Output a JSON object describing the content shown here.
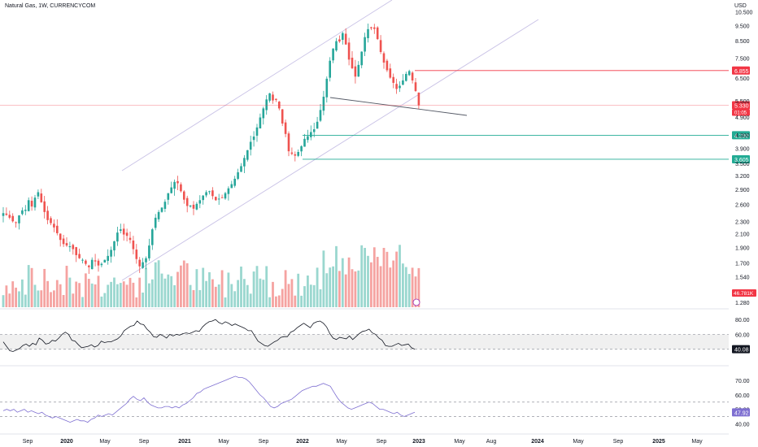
{
  "header": {
    "title": "Natural Gas, 1W, CURRENCYCOM",
    "currency": "USD"
  },
  "colors": {
    "up": "#26a69a",
    "down": "#ef5350",
    "volUp": "#9ad7cf",
    "volDown": "#f5a3a1",
    "channel": "#c9c2e6",
    "level_red": "#f23645",
    "level_green": "#22ab94",
    "rsi_line": "#131722",
    "stoch_line": "#7e6fd1",
    "grid_dash": "#9598a1"
  },
  "chart_data": [
    {
      "type": "candlestick",
      "title": "Natural Gas, 1W, CURRENCYCOM",
      "y_scale": "log",
      "ylim": [
        1.22,
        10.9
      ],
      "x_axis_labels": [
        "Sep",
        "2020",
        "May",
        "Sep",
        "2021",
        "May",
        "Sep",
        "2022",
        "May",
        "Sep",
        "2023",
        "May",
        "Aug",
        "2024",
        "May",
        "Sep",
        "2025",
        "May"
      ],
      "y_axis_labels": [
        "10.500",
        "9.500",
        "8.500",
        "7.500",
        "6.500",
        "5.500",
        "4.900",
        "4.300",
        "3.900",
        "3.500",
        "3.200",
        "2.900",
        "2.600",
        "2.300",
        "2.100",
        "1.900",
        "1.700",
        "1.540",
        "1.280"
      ],
      "close_path": [
        2.44,
        2.41,
        2.36,
        2.3,
        2.28,
        2.4,
        2.49,
        2.5,
        2.68,
        2.56,
        2.73,
        2.84,
        2.64,
        2.46,
        2.32,
        2.27,
        2.2,
        2.11,
        2.01,
        1.95,
        1.93,
        1.92,
        1.88,
        1.8,
        1.76,
        1.74,
        1.69,
        1.65,
        1.74,
        1.72,
        1.67,
        1.69,
        1.74,
        1.79,
        1.87,
        1.99,
        2.12,
        2.17,
        2.09,
        2.07,
        2.01,
        1.88,
        1.75,
        1.66,
        1.71,
        1.76,
        1.93,
        2.17,
        2.36,
        2.46,
        2.54,
        2.65,
        2.82,
        2.94,
        3.06,
        3.03,
        2.86,
        2.69,
        2.57,
        2.58,
        2.52,
        2.61,
        2.68,
        2.77,
        2.84,
        2.86,
        2.76,
        2.68,
        2.71,
        2.73,
        2.82,
        2.92,
        3.01,
        3.13,
        3.28,
        3.43,
        3.64,
        3.85,
        4.09,
        4.25,
        4.54,
        4.88,
        5.21,
        5.56,
        5.81,
        5.52,
        5.54,
        5.21,
        4.67,
        4.33,
        3.82,
        3.75,
        3.7,
        3.8,
        3.96,
        4.18,
        4.26,
        4.39,
        4.48,
        4.73,
        5.15,
        5.67,
        6.46,
        7.36,
        8.04,
        8.48,
        8.46,
        8.99,
        8.28,
        7.42,
        6.97,
        6.56,
        7.14,
        7.86,
        8.73,
        9.25,
        9.31,
        9.27,
        8.61,
        7.84,
        7.26,
        6.87,
        6.51,
        6.27,
        6.0,
        6.14,
        6.38,
        6.69,
        6.83,
        6.38,
        5.91,
        5.33
      ],
      "volume_note": "46.781K",
      "levels": [
        {
          "label": "6.855",
          "value": 6.855,
          "color": "red"
        },
        {
          "label": "5.330",
          "value": 5.33,
          "color": "red",
          "sub": "01:05"
        },
        {
          "label": "4.290",
          "value": 4.29,
          "color": "green"
        },
        {
          "label": "3.605",
          "value": 3.605,
          "color": "green"
        }
      ]
    },
    {
      "type": "line",
      "name": "RSI",
      "ylim": [
        20,
        90
      ],
      "y_axis_labels": [
        "80.00",
        "60.00"
      ],
      "bands": [
        60,
        40
      ],
      "last_value": "40.08",
      "values": [
        50,
        44,
        38,
        37,
        39,
        41,
        45,
        47,
        44,
        48,
        46,
        55,
        52,
        47,
        48,
        52,
        51,
        55,
        60,
        63,
        60,
        52,
        51,
        46,
        42,
        43,
        44,
        46,
        43,
        45,
        51,
        49,
        50,
        50,
        52,
        54,
        58,
        65,
        68,
        71,
        72,
        78,
        74,
        73,
        67,
        63,
        57,
        56,
        60,
        58,
        55,
        60,
        58,
        60,
        59,
        61,
        62,
        61,
        63,
        65,
        64,
        70,
        74,
        77,
        78,
        80,
        76,
        74,
        77,
        75,
        72,
        74,
        72,
        70,
        68,
        65,
        65,
        58,
        51,
        48,
        45,
        44,
        47,
        50,
        52,
        56,
        57,
        57,
        63,
        65,
        69,
        72,
        75,
        72,
        69,
        75,
        77,
        78,
        75,
        70,
        61,
        55,
        53,
        56,
        55,
        54,
        58,
        53,
        57,
        61,
        64,
        65,
        67,
        62,
        60,
        55,
        52,
        45,
        44,
        44,
        46,
        48,
        45,
        46,
        47,
        42,
        40
      ]
    },
    {
      "type": "line",
      "name": "Stochastic RSI",
      "ylim": [
        34,
        78
      ],
      "y_axis_labels": [
        "70.00",
        "60.00",
        "50.00",
        "40.00"
      ],
      "bands": [
        55,
        45
      ],
      "last_value": "47.92",
      "values": [
        49,
        50,
        49,
        50,
        48,
        49,
        50,
        48,
        49,
        48,
        47,
        48,
        46,
        45,
        44,
        45,
        44,
        43,
        42,
        41,
        42,
        43,
        42,
        42,
        41,
        43,
        44,
        46,
        45,
        46,
        47,
        46,
        48,
        50,
        52,
        54,
        57,
        59,
        57,
        56,
        58,
        55,
        53,
        52,
        51,
        51,
        52,
        52,
        51,
        52,
        51,
        53,
        54,
        56,
        58,
        61,
        62,
        64,
        65,
        66,
        67,
        68,
        69,
        70,
        71,
        72,
        73,
        72,
        72,
        71,
        69,
        66,
        63,
        60,
        58,
        55,
        52,
        51,
        52,
        54,
        55,
        56,
        57,
        59,
        61,
        63,
        64,
        65,
        66,
        66,
        67,
        68,
        67,
        66,
        62,
        58,
        55,
        53,
        51,
        50,
        51,
        52,
        53,
        54,
        55,
        54,
        52,
        50,
        50,
        49,
        48,
        47,
        48,
        46,
        45,
        46,
        47,
        48
      ]
    }
  ]
}
